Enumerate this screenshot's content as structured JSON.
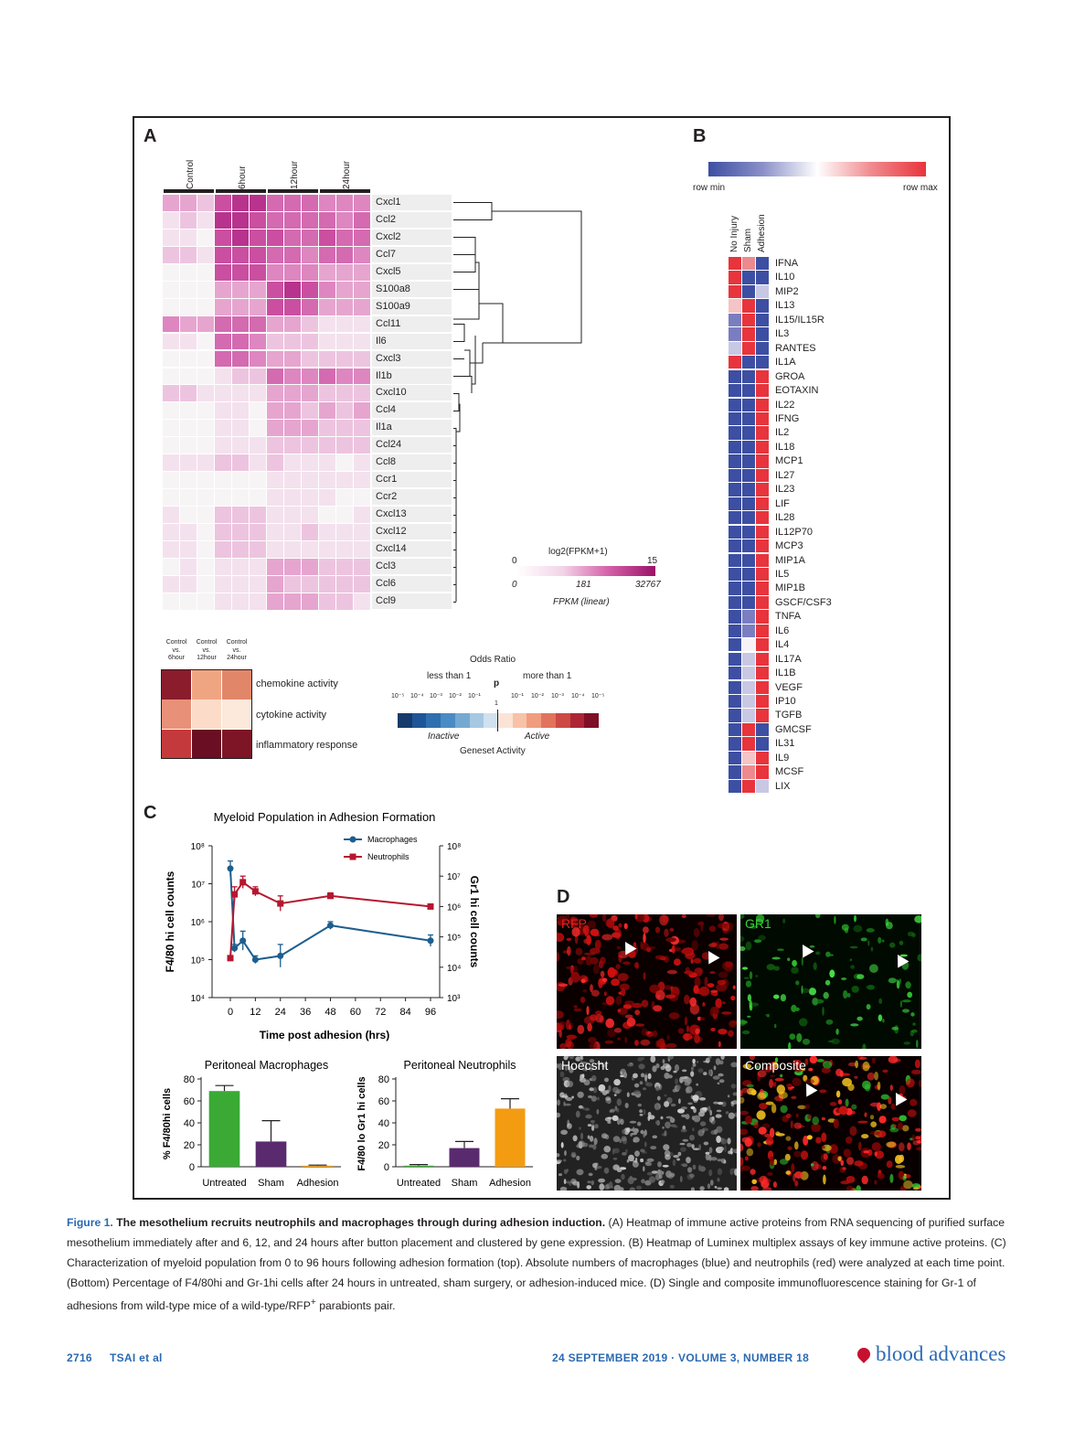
{
  "panels": {
    "a": "A",
    "b": "B",
    "c": "C",
    "d": "D"
  },
  "panel_a": {
    "timepoints": [
      "Control",
      "6hour",
      "12hour",
      "24hour"
    ],
    "genes": [
      "Cxcl1",
      "Ccl2",
      "Cxcl2",
      "Ccl7",
      "Cxcl5",
      "S100a8",
      "S100a9",
      "Ccl11",
      "Il6",
      "Cxcl3",
      "Il1b",
      "Cxcl10",
      "Ccl4",
      "Il1a",
      "Ccl24",
      "Ccl8",
      "Ccr1",
      "Ccr2",
      "Cxcl13",
      "Cxcl12",
      "Cxcl14",
      "Ccl3",
      "Ccl6",
      "Ccl9"
    ],
    "heat_colors": [
      "#f7f4f6",
      "#f4e1ee",
      "#edc4df",
      "#e6a5cf",
      "#de86c0",
      "#d46ab0",
      "#ca4fa0",
      "#b8338d"
    ],
    "heat_levels": [
      [
        3,
        3,
        2,
        6,
        7,
        7,
        5,
        5,
        5,
        4,
        4,
        4
      ],
      [
        1,
        2,
        1,
        7,
        7,
        6,
        5,
        5,
        5,
        5,
        4,
        5
      ],
      [
        1,
        1,
        0,
        6,
        7,
        6,
        6,
        5,
        5,
        6,
        5,
        5
      ],
      [
        2,
        2,
        1,
        6,
        6,
        6,
        5,
        5,
        4,
        5,
        5,
        4
      ],
      [
        0,
        0,
        0,
        6,
        6,
        6,
        4,
        4,
        4,
        3,
        3,
        3
      ],
      [
        0,
        0,
        0,
        3,
        3,
        3,
        6,
        7,
        6,
        4,
        3,
        3
      ],
      [
        0,
        0,
        0,
        3,
        3,
        3,
        6,
        6,
        5,
        3,
        3,
        3
      ],
      [
        4,
        3,
        3,
        5,
        5,
        5,
        3,
        3,
        2,
        1,
        1,
        1
      ],
      [
        1,
        1,
        0,
        5,
        5,
        4,
        2,
        2,
        2,
        1,
        1,
        1
      ],
      [
        0,
        0,
        0,
        5,
        5,
        4,
        3,
        3,
        2,
        2,
        2,
        2
      ],
      [
        0,
        0,
        0,
        1,
        2,
        2,
        5,
        4,
        4,
        5,
        4,
        4
      ],
      [
        2,
        2,
        1,
        1,
        1,
        1,
        3,
        3,
        3,
        2,
        2,
        2
      ],
      [
        0,
        0,
        0,
        1,
        1,
        0,
        3,
        3,
        2,
        3,
        2,
        3
      ],
      [
        0,
        0,
        0,
        1,
        1,
        0,
        3,
        3,
        3,
        2,
        2,
        2
      ],
      [
        0,
        0,
        0,
        1,
        1,
        1,
        2,
        2,
        2,
        2,
        2,
        2
      ],
      [
        1,
        1,
        1,
        2,
        2,
        1,
        2,
        1,
        1,
        1,
        0,
        1
      ],
      [
        0,
        0,
        0,
        0,
        0,
        0,
        1,
        1,
        1,
        1,
        1,
        1
      ],
      [
        0,
        0,
        0,
        0,
        0,
        0,
        1,
        1,
        1,
        1,
        0,
        0
      ],
      [
        1,
        0,
        0,
        2,
        2,
        2,
        1,
        1,
        1,
        0,
        0,
        1
      ],
      [
        1,
        1,
        0,
        2,
        2,
        2,
        1,
        1,
        2,
        1,
        1,
        1
      ],
      [
        1,
        1,
        0,
        2,
        2,
        2,
        1,
        1,
        1,
        1,
        1,
        1
      ],
      [
        0,
        1,
        0,
        1,
        1,
        1,
        3,
        3,
        3,
        2,
        2,
        2
      ],
      [
        1,
        1,
        0,
        1,
        1,
        1,
        3,
        2,
        2,
        2,
        2,
        2
      ],
      [
        0,
        0,
        0,
        1,
        1,
        1,
        3,
        3,
        3,
        2,
        2,
        1
      ]
    ],
    "scale_title": "log2(FPKM+1)",
    "scale_min": "0",
    "scale_max": "15",
    "linear_ticks": [
      "0",
      "181",
      "32767"
    ],
    "linear_label": "FPKM (linear)",
    "enrich_cols": [
      "Control vs. 6hour",
      "Control vs. 12hour",
      "Control vs. 24hour"
    ],
    "enrich_rows": [
      "chemokine activity",
      "cytokine activity",
      "inflammatory response"
    ],
    "enrich_colors": [
      [
        "#8a1c2c",
        "#f0a582",
        "#e2866a"
      ],
      [
        "#e99078",
        "#fcdcc8",
        "#fde8dc"
      ],
      [
        "#c43a3c",
        "#6a0e24",
        "#7d1526"
      ]
    ],
    "odds_title": "Odds Ratio",
    "less": "less than 1",
    "more": "more than 1",
    "p": "p",
    "one": "1",
    "odds_ticks_left": [
      "10⁻⁵",
      "10⁻⁴",
      "10⁻³",
      "10⁻²",
      "10⁻¹"
    ],
    "odds_ticks_right": [
      "10⁻¹",
      "10⁻²",
      "10⁻³",
      "10⁻⁴",
      "10⁻⁵"
    ],
    "odds_colors": [
      "#163a6b",
      "#1f5596",
      "#2f6fb0",
      "#4b8bc3",
      "#75a9d2",
      "#a6c8e2",
      "#d0e2ef",
      "#fbe3d6",
      "#f7c2a7",
      "#ef9d7e",
      "#e1735d",
      "#cc4944",
      "#ad2535",
      "#7e0f26"
    ],
    "inactive": "Inactive",
    "active": "Active",
    "geneset": "Geneset Activity"
  },
  "panel_b": {
    "scale_min": "row min",
    "scale_max": "row max",
    "columns": [
      "No Injury",
      "Sham",
      "Adhesion"
    ],
    "proteins": [
      "IFNA",
      "IL10",
      "MIP2",
      "IL13",
      "IL15/IL15R",
      "IL3",
      "RANTES",
      "IL1A",
      "GROA",
      "EOTAXIN",
      "IL22",
      "IFNG",
      "IL2",
      "IL18",
      "MCP1",
      "IL27",
      "IL23",
      "LIF",
      "IL28",
      "IL12P70",
      "MCP3",
      "MIP1A",
      "IL5",
      "MIP1B",
      "GSCF/CSF3",
      "TNFA",
      "IL6",
      "IL4",
      "IL17A",
      "IL1B",
      "VEGF",
      "IP10",
      "TGFB",
      "GMCSF",
      "IL31",
      "IL9",
      "MCSF",
      "LIX"
    ],
    "heat_colors": {
      "R": "#e8343c",
      "r": "#ec8a8e",
      "p": "#f4c4c6",
      "W": "#f6f2f6",
      "l": "#c8c8e4",
      "m": "#7a7ec0",
      "B": "#3d4fa2"
    },
    "heat_codes": [
      "RrB",
      "RBB",
      "RBl",
      "pRB",
      "mRB",
      "mRB",
      "lRB",
      "RBB",
      "BBR",
      "BBR",
      "BBR",
      "BBR",
      "BBR",
      "BBR",
      "BBR",
      "BBR",
      "BBR",
      "BBR",
      "BBR",
      "BBR",
      "BBR",
      "BBR",
      "BBR",
      "BBR",
      "BBR",
      "BmR",
      "BmR",
      "BWR",
      "BlR",
      "BlR",
      "BlR",
      "BlR",
      "BlR",
      "BRB",
      "BRB",
      "BpR",
      "BrR",
      "BRl"
    ]
  },
  "panel_c": {
    "line_chart": {
      "type": "line",
      "title": "Myeloid Population in Adhesion Formation",
      "xlabel": "Time post adhesion (hrs)",
      "ylabel_left": "F4/80 hi cell counts",
      "ylabel_right": "Gr1 hi cell counts",
      "xticks": [
        0,
        12,
        24,
        36,
        48,
        60,
        72,
        84,
        96
      ],
      "left_ticks": [
        "10⁸",
        "10⁷",
        "10⁶",
        "10⁵",
        "10⁴"
      ],
      "right_ticks": [
        "10⁸",
        "10⁷",
        "10⁶",
        "10⁵",
        "10⁴",
        "10³"
      ],
      "series": [
        {
          "name": "Macrophages",
          "color": "#1d5e8e",
          "axis": "left",
          "x": [
            0,
            2,
            6,
            12,
            24,
            48,
            96
          ],
          "y_log10": [
            7.4,
            5.3,
            5.5,
            5.0,
            5.1,
            5.9,
            5.5
          ],
          "err_log10": [
            0.2,
            0.1,
            0.25,
            0.1,
            0.3,
            0.1,
            0.15
          ]
        },
        {
          "name": "Neutrophils",
          "color": "#b5172f",
          "axis": "right",
          "x": [
            0,
            2,
            6,
            12,
            24,
            48,
            96
          ],
          "y_log10": [
            4.3,
            6.4,
            6.8,
            6.5,
            6.1,
            6.35,
            6.0
          ],
          "err_log10": [
            0.05,
            0.25,
            0.2,
            0.15,
            0.25,
            0.1,
            0.08
          ]
        }
      ],
      "left_range_log10": [
        4,
        8
      ],
      "right_range_log10": [
        3,
        8
      ]
    },
    "bar_macro": {
      "type": "bar",
      "title": "Peritoneal Macrophages",
      "ylabel": "% F4/80hi cells",
      "categories": [
        "Untreated",
        "Sham",
        "Adhesion"
      ],
      "values": [
        69,
        23,
        1
      ],
      "errors": [
        5,
        19,
        0.5
      ],
      "colors": [
        "#3aaa35",
        "#5a2a6e",
        "#f39c12"
      ],
      "ylim": [
        0,
        80
      ],
      "yticks": [
        "0",
        "20",
        "40",
        "60",
        "80"
      ]
    },
    "bar_neutro": {
      "type": "bar",
      "title": "Peritoneal Neutrophils",
      "ylabel": "F4/80 lo Gr1 hi cells",
      "categories": [
        "Untreated",
        "Sham",
        "Adhesion"
      ],
      "values": [
        1,
        17,
        53
      ],
      "errors": [
        1,
        6,
        9
      ],
      "colors": [
        "#3aaa35",
        "#5a2a6e",
        "#f39c12"
      ],
      "ylim": [
        0,
        80
      ],
      "yticks": [
        "0",
        "20",
        "40",
        "60",
        "80"
      ]
    }
  },
  "panel_d": {
    "labels": [
      "RFP",
      "GR1",
      "Hoecsht",
      "Composite"
    ],
    "label_colors": [
      "#e02020",
      "#38d038",
      "#ffffff",
      "#ffffff"
    ]
  },
  "caption": {
    "fig_num": "Figure 1.",
    "title": "The mesothelium recruits neutrophils and macrophages through during adhesion induction.",
    "body": " (A) Heatmap of immune active proteins from RNA sequencing of purified surface mesothelium immediately after and 6, 12, and 24 hours after button placement and clustered by gene expression. (B) Heatmap of Luminex multiplex assays of key immune active proteins. (C) Characterization of myeloid population from 0 to 96 hours following adhesion formation (top). Absolute numbers of macrophages (blue) and neutrophils (red) were analyzed at each time point. (Bottom) Percentage of F4/80hi and Gr-1hi cells after 24 hours in untreated, sham surgery, or adhesion-induced mice. (D) Single and composite immunofluorescence staining for Gr-1 of adhesions from wild-type mice of a wild-type/RFP",
    "sup": "+",
    "end": " parabionts pair."
  },
  "footer": {
    "page": "2716",
    "authors": "TSAI et al",
    "issue": "24 SEPTEMBER 2019 · VOLUME 3, NUMBER 18",
    "journal": "blood advances"
  }
}
